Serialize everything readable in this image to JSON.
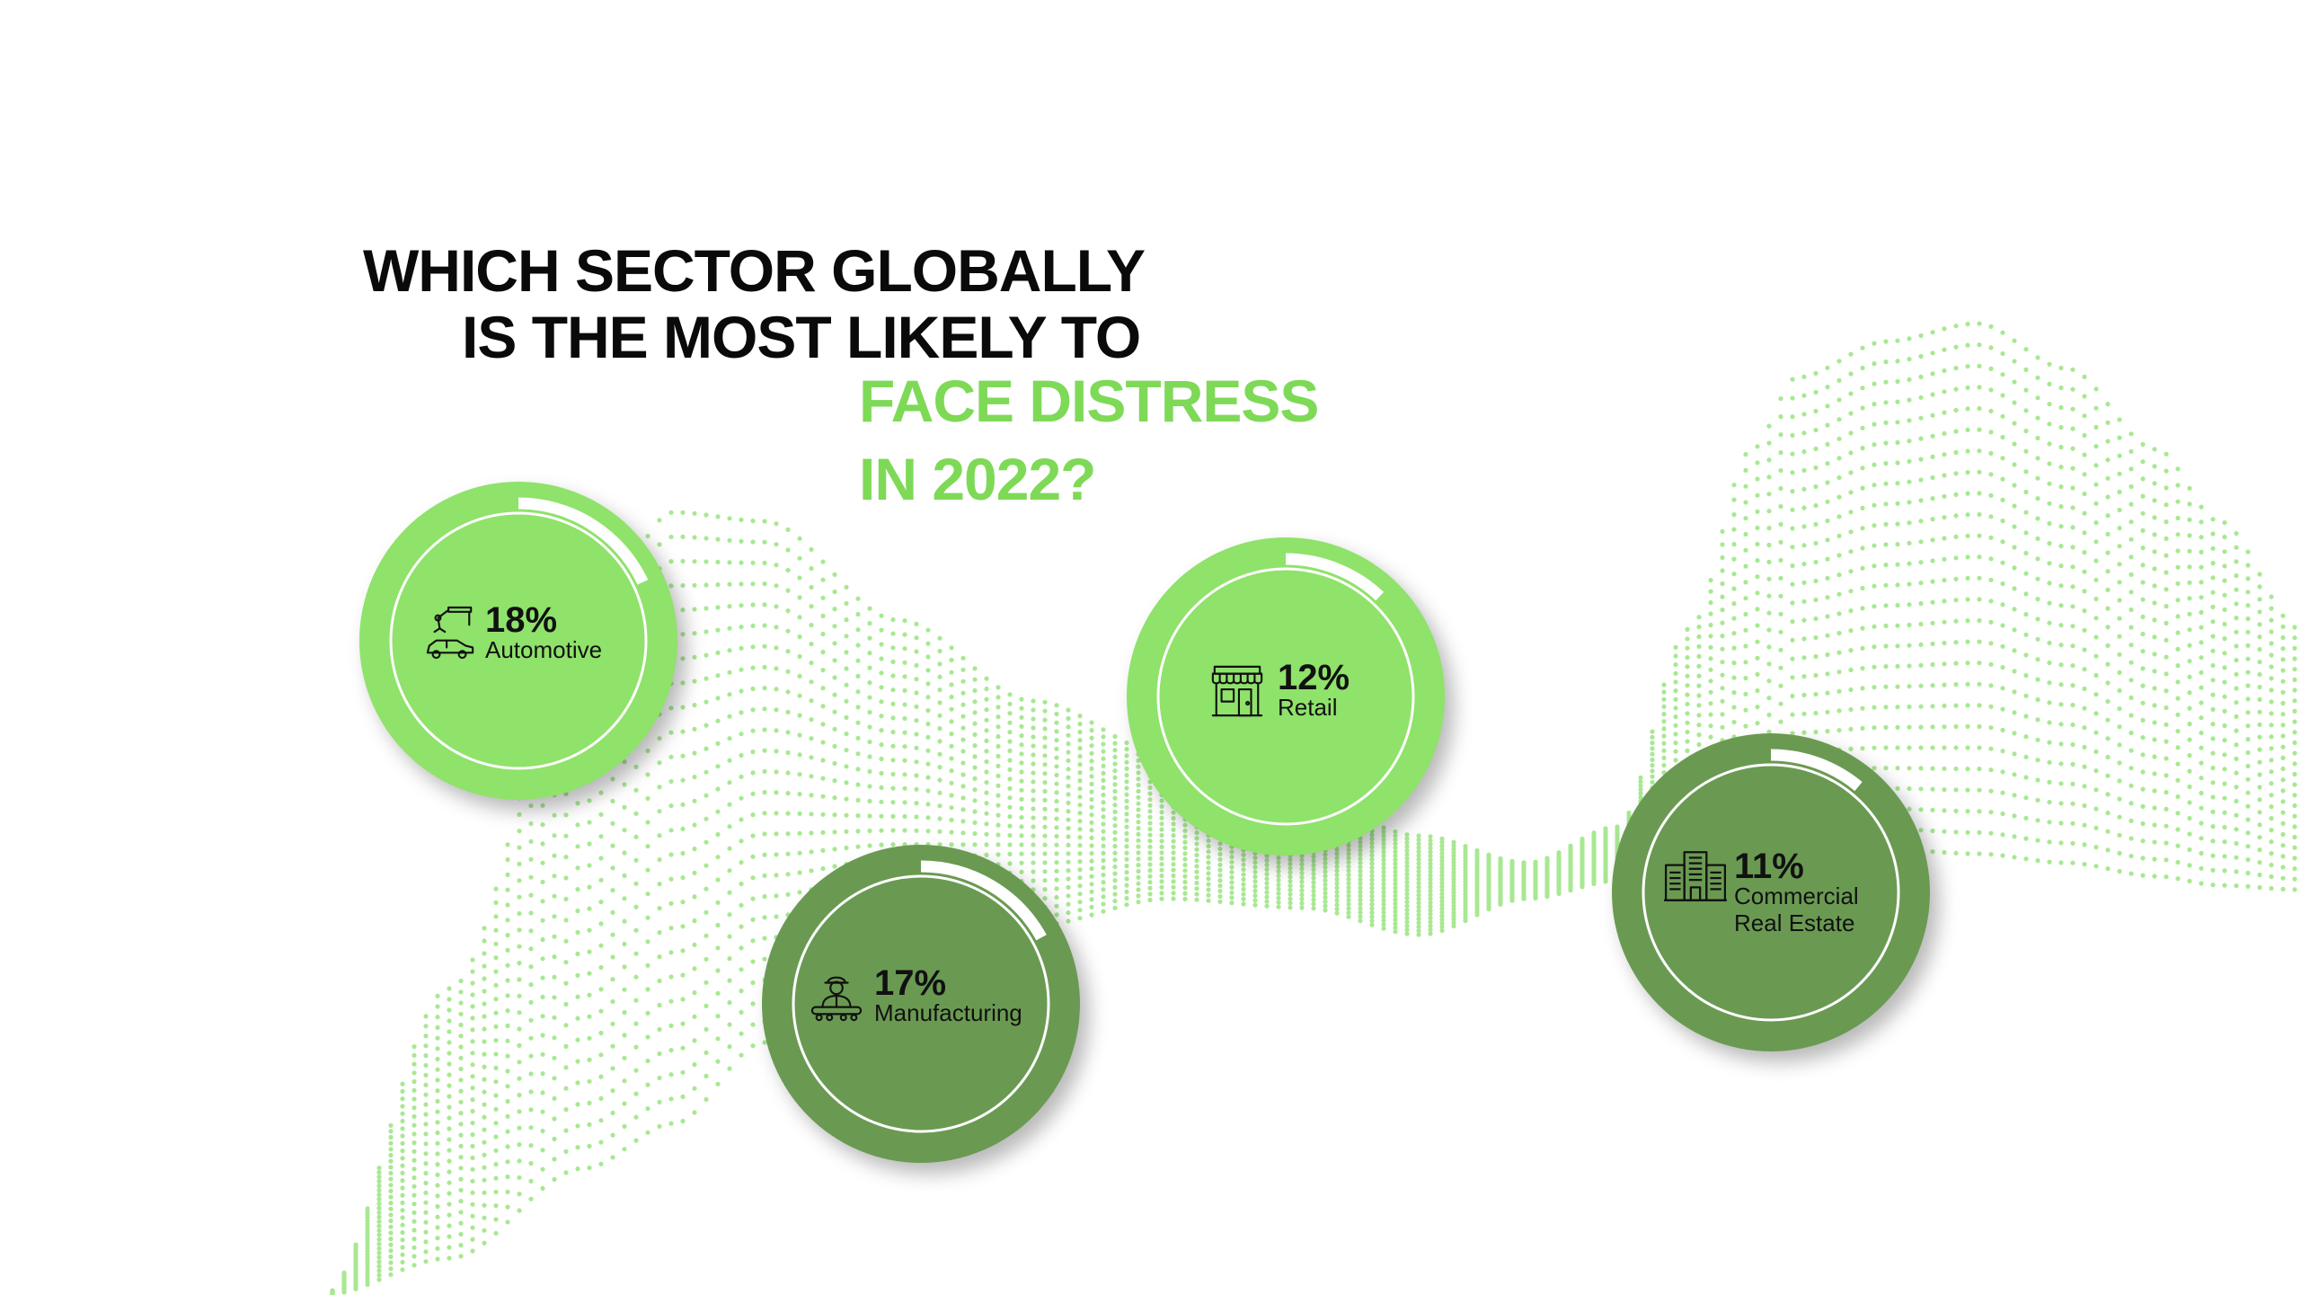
{
  "title": {
    "line1": "WHICH SECTOR GLOBALLY",
    "line2": "IS THE MOST LIKELY TO",
    "line3": "FACE DISTRESS",
    "line4": "IN 2022?"
  },
  "colors": {
    "title_black": "#0a0a0a",
    "title_green": "#7ed957",
    "bubble_light": "#8fe26a",
    "bubble_dark": "#6a9a52",
    "ring": "#ffffff",
    "wave_dots": "#a8e892"
  },
  "chart_data": {
    "type": "bubble",
    "title": "WHICH SECTOR GLOBALLY IS THE MOST LIKELY TO FACE DISTRESS IN 2022?",
    "unit": "%",
    "categories": [
      "Automotive",
      "Manufacturing",
      "Retail",
      "Commercial Real Estate"
    ],
    "values": [
      18,
      17,
      12,
      11
    ],
    "value_labels": [
      "18%",
      "17%",
      "12%",
      "11%"
    ],
    "icons": [
      "robot-arm-car-icon",
      "factory-worker-icon",
      "storefront-icon",
      "office-buildings-icon"
    ],
    "shades": [
      "light",
      "dark",
      "light",
      "dark"
    ]
  },
  "sectors": [
    {
      "pct": "18%",
      "label": "Automotive"
    },
    {
      "pct": "17%",
      "label": "Manufacturing"
    },
    {
      "pct": "12%",
      "label": "Retail"
    },
    {
      "pct": "11%",
      "label": "Commercial\nReal Estate"
    }
  ]
}
